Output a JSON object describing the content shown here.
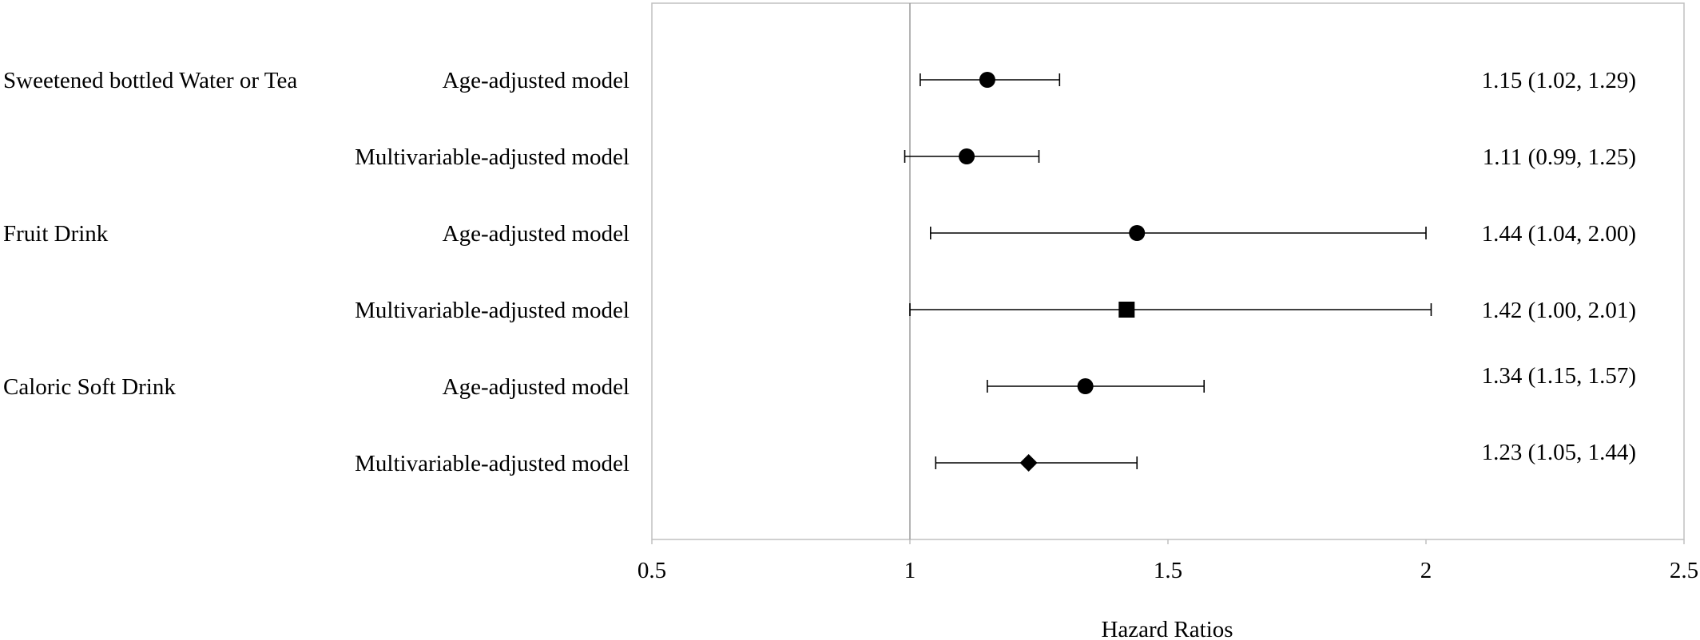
{
  "chart_data": {
    "type": "forest",
    "title": "",
    "xlabel": "Hazard Ratios",
    "ylabel": "",
    "xlim": [
      0.5,
      2.5
    ],
    "xticks": [
      "0.5",
      "1",
      "1.5",
      "2",
      "2.5"
    ],
    "reference_line": 1,
    "grid": false,
    "groups": [
      {
        "name": "Sweetened bottled Water or Tea",
        "first_row": 0
      },
      {
        "name": "Fruit Drink",
        "first_row": 2
      },
      {
        "name": "Caloric Soft Drink",
        "first_row": 4
      }
    ],
    "rows": [
      {
        "model": "Age-adjusted model",
        "hr": 1.15,
        "lower": 1.02,
        "upper": 1.29,
        "ci_text": "1.15 (1.02, 1.29)",
        "marker": "circle"
      },
      {
        "model": "Multivariable-adjusted model",
        "hr": 1.11,
        "lower": 0.99,
        "upper": 1.25,
        "ci_text": "1.11 (0.99, 1.25)",
        "marker": "circle"
      },
      {
        "model": "Age-adjusted model",
        "hr": 1.44,
        "lower": 1.04,
        "upper": 2.0,
        "ci_text": "1.44 (1.04, 2.00)",
        "marker": "circle"
      },
      {
        "model": "Multivariable-adjusted model",
        "hr": 1.42,
        "lower": 1.0,
        "upper": 2.01,
        "ci_text": "1.42 (1.00, 2.01)",
        "marker": "square"
      },
      {
        "model": "Age-adjusted model",
        "hr": 1.34,
        "lower": 1.15,
        "upper": 1.57,
        "ci_text": "1.34 (1.15, 1.57)",
        "marker": "circle"
      },
      {
        "model": "Multivariable-adjusted model",
        "hr": 1.23,
        "lower": 1.05,
        "upper": 1.44,
        "ci_text": "1.23 (1.05, 1.44)",
        "marker": "diamond"
      }
    ],
    "colors": {
      "marker": "#000000",
      "axis": "#c0c0c0",
      "reference": "#9a9a9a",
      "text": "#000000"
    }
  }
}
